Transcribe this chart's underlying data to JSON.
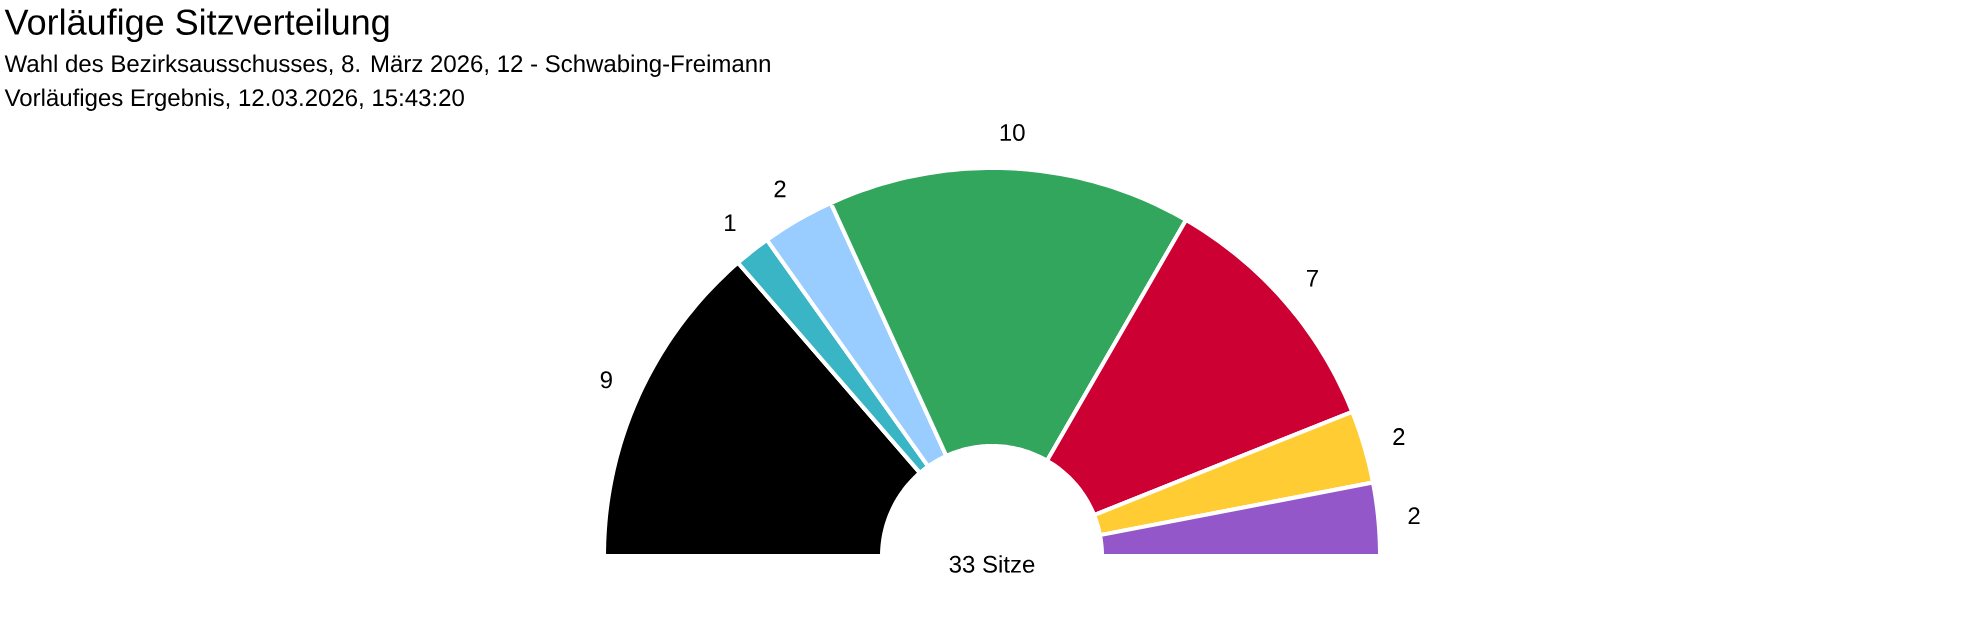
{
  "chart_data": {
    "type": "donut",
    "title": "Vorläufige Sitzverteilung",
    "subtitle": "Wahl des Bezirksausschusses, 8. März 2026, 12 - Schwabing-Freimann",
    "annotations": [
      "Vorläufiges Ergebnis, 12.03.2026, 15:43:20",
      "33 Sitze"
    ],
    "categories": [
      null,
      null,
      null,
      null,
      null,
      null,
      null
    ],
    "values": [
      9,
      1,
      2,
      10,
      7,
      2,
      2
    ],
    "colors": [
      "#000000",
      "#3ab5c6",
      "#99ccff",
      "#33a65e",
      "#cc0033",
      "#ffcc33",
      "#9457c9"
    ],
    "data_labels": true
  }
}
